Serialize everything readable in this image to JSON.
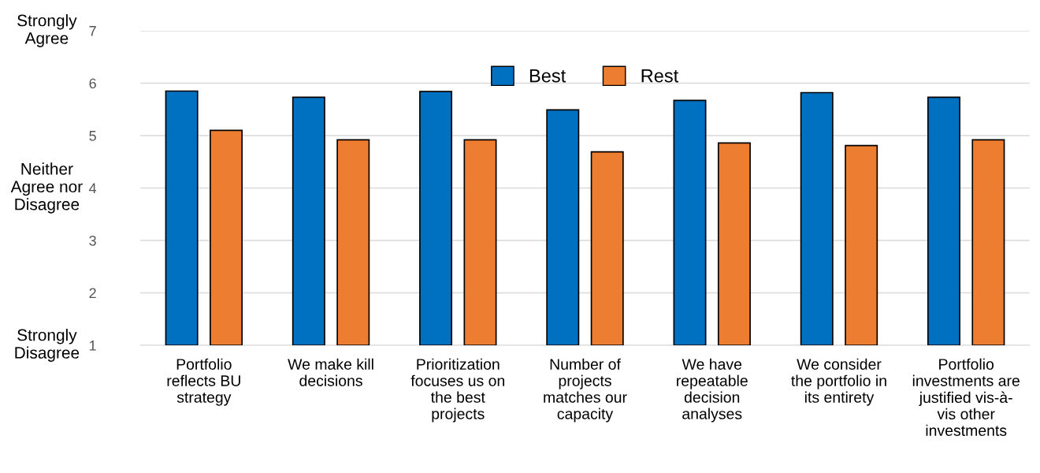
{
  "chart_data": {
    "type": "bar",
    "categories": [
      "Portfolio\nreflects BU\nstrategy",
      "We make kill\ndecisions",
      "Prioritization\nfocuses us on\nthe best\nprojects",
      "Number of\nprojects\nmatches our\ncapacity",
      "We have\nrepeatable\ndecision\nanalyses",
      "We consider\nthe portfolio in\nits entirety",
      "Portfolio\ninvestments are\njustified vis-à-\nvis other\ninvestments"
    ],
    "series": [
      {
        "name": "Best",
        "color": "#0070c0",
        "values": [
          5.85,
          5.73,
          5.84,
          5.49,
          5.67,
          5.82,
          5.73
        ]
      },
      {
        "name": "Rest",
        "color": "#ed7d31",
        "values": [
          5.1,
          4.92,
          4.92,
          4.69,
          4.86,
          4.81,
          4.92
        ]
      }
    ],
    "ylim": [
      1,
      7
    ],
    "yticks": [
      1,
      2,
      3,
      4,
      5,
      6,
      7
    ],
    "grid": "y",
    "legend": "top",
    "annotations": [
      "Strongly\nAgree",
      "Neither\nAgree nor\nDisagree",
      "Strongly\nDisagree"
    ]
  }
}
